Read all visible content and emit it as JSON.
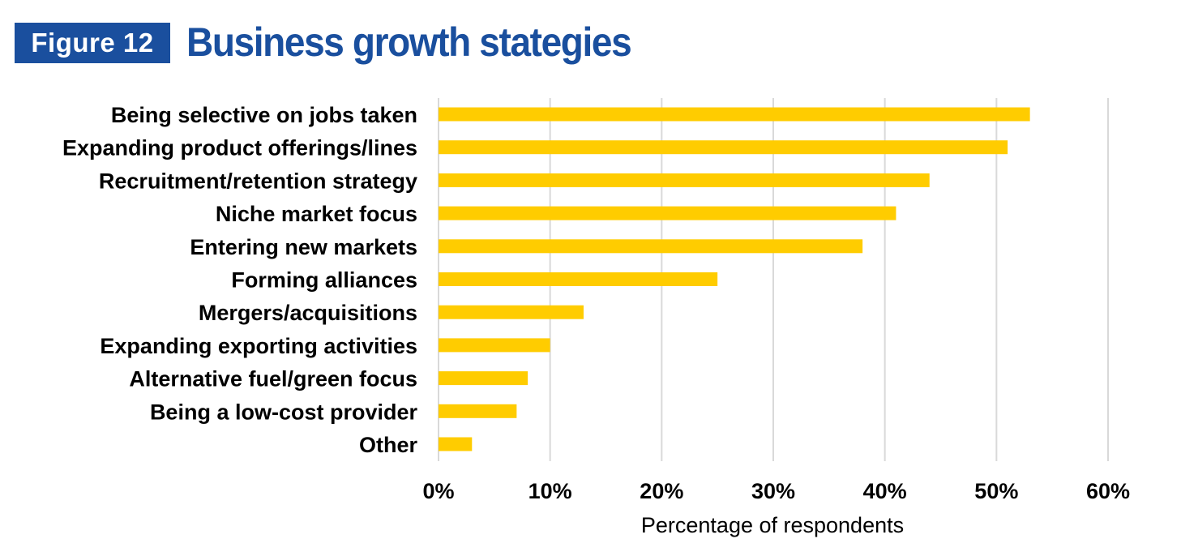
{
  "figure": {
    "label": "Figure 12",
    "title": "Business growth stategies"
  },
  "colors": {
    "brand": "#1a4f9e",
    "bar": "#ffcc00",
    "grid": "#d9d9d9",
    "text": "#000000"
  },
  "chart_data": {
    "type": "bar",
    "orientation": "horizontal",
    "title": "Business growth stategies",
    "xlabel": "Percentage of respondents",
    "ylabel": "",
    "categories": [
      "Being selective on jobs taken",
      "Expanding product offerings/lines",
      "Recruitment/retention strategy",
      "Niche market focus",
      "Entering new markets",
      "Forming alliances",
      "Mergers/acquisitions",
      "Expanding exporting activities",
      "Alternative fuel/green focus",
      "Being a low-cost provider",
      "Other"
    ],
    "values": [
      53,
      51,
      44,
      41,
      38,
      25,
      13,
      10,
      8,
      7,
      3
    ],
    "xlim": [
      0,
      60
    ],
    "xticks": [
      0,
      10,
      20,
      30,
      40,
      50,
      60
    ],
    "xtick_labels": [
      "0%",
      "10%",
      "20%",
      "30%",
      "40%",
      "50%",
      "60%"
    ],
    "grid": "vertical",
    "legend": "none"
  }
}
